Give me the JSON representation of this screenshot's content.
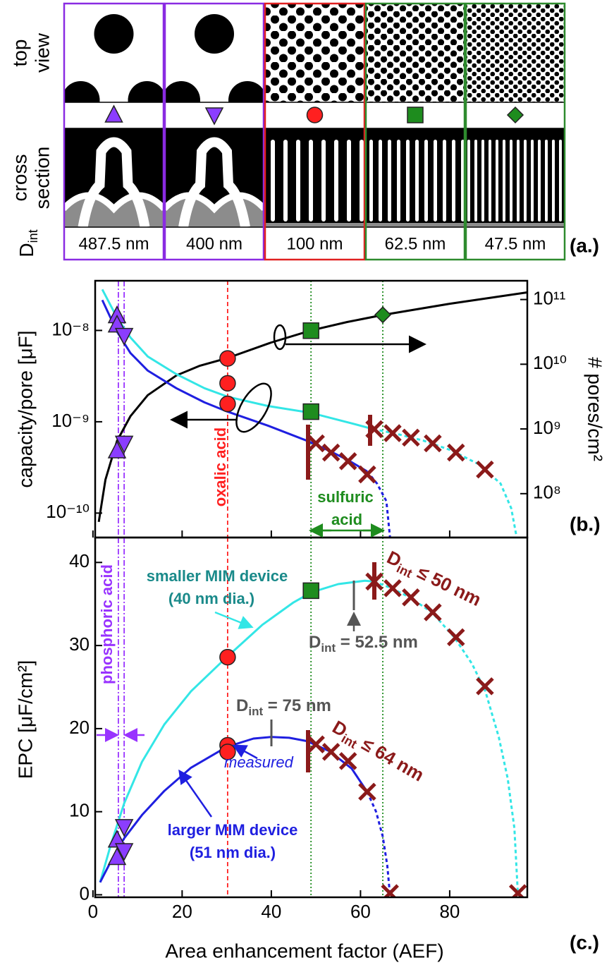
{
  "panel_a": {
    "row_labels": {
      "top": [
        "top",
        "view"
      ],
      "cross": [
        "cross",
        "section"
      ]
    },
    "dint": {
      "main": "D",
      "sub": "int"
    },
    "columns": [
      "487.5 nm",
      "400 nm",
      "100 nm",
      "62.5 nm",
      "47.5 nm"
    ],
    "tag": "(a.)"
  },
  "chart_data": [
    {
      "type": "line",
      "tag": "(b.)",
      "ylabel": "capacity/pore [μF]",
      "y2label": "# pores/cm²",
      "xlim": [
        0.5,
        97.4
      ],
      "ylim": [
        5.4e-11,
        3.5e-08
      ],
      "ylog": true,
      "yticks": [
        {
          "value": 1e-10,
          "label": "10⁻¹⁰"
        },
        {
          "value": 1e-09,
          "label": "10⁻⁹"
        },
        {
          "value": 1e-08,
          "label": "10⁻⁸"
        }
      ],
      "y2lim": [
        21000000.0,
        195000000000.0
      ],
      "y2log": true,
      "y2ticks": [
        {
          "value": 100000000.0,
          "label": "10⁸"
        },
        {
          "value": 1000000000.0,
          "label": "10⁹"
        },
        {
          "value": 10000000000.0,
          "label": "10¹⁰"
        },
        {
          "value": 100000000000.0,
          "label": "10¹¹"
        }
      ],
      "vlines": [
        {
          "x": 5.7,
          "color": "#9933ff",
          "dash": "8 3 2 3"
        },
        {
          "x": 7.0,
          "color": "#9933ff",
          "dash": "8 3 2 3"
        },
        {
          "x": 30.2,
          "color": "#ff2020",
          "dash": "6 4"
        },
        {
          "x": 48.9,
          "color": "#1e8c1e",
          "dash": "2 3"
        },
        {
          "x": 65.0,
          "color": "#1e8c1e",
          "dash": "2 3"
        }
      ],
      "annotations": {
        "oxalic": "oxalic acid",
        "sulfuric": [
          "sulfuric",
          "acid"
        ]
      },
      "series": [
        {
          "color": "#000000",
          "style": "solid",
          "axis": "y2",
          "x": [
            1.3,
            2.8,
            5.4,
            8.4,
            12.3,
            18.7,
            24,
            30.2,
            40,
            48.9,
            57,
            65,
            80,
            97.4
          ],
          "values": [
            36700000.0,
            165000000.0,
            653000000.0,
            1570000000.0,
            3330000000.0,
            6700000000.0,
            9500000000.0,
            12500000000.0,
            21700000000.0,
            33300000000.0,
            44900000000.0,
            57700000000.0,
            86100000000.0,
            129000000000.0
          ]
        },
        {
          "color": "#33e6e6",
          "style": "solid",
          "x": [
            2.1,
            5.4,
            8.4,
            12.3,
            18.7,
            25.0,
            30.2,
            39.2,
            48.9,
            58.2,
            62.9
          ],
          "values": [
            2.81e-08,
            1.38e-08,
            8.37e-09,
            5.18e-09,
            3.32e-09,
            2.33e-09,
            1.88e-09,
            1.49e-09,
            1.25e-09,
            9.57e-10,
            8.3e-10
          ]
        },
        {
          "color": "#33e6e6",
          "style": "dashed",
          "x": [
            62.9,
            67.7,
            74.0,
            80.3,
            86.6,
            91.4,
            93.8,
            95.0
          ],
          "values": [
            8.3e-10,
            7.46e-10,
            6.24e-10,
            4.87e-10,
            3.41e-10,
            2.11e-10,
            1.13e-10,
            5.5e-11
          ]
        },
        {
          "color": "#1f1fe0",
          "style": "solid",
          "x": [
            2.1,
            5.4,
            8.4,
            12.3,
            18.7,
            25.0,
            30.2,
            39.2,
            48.2,
            53.4,
            57.2,
            61.5
          ],
          "values": [
            2.15e-08,
            9.7e-09,
            5.66e-09,
            3.63e-09,
            2.33e-09,
            1.63e-09,
            1.29e-09,
            9.08e-10,
            6.14e-10,
            4.7e-10,
            3.8e-10,
            2.86e-10
          ]
        },
        {
          "color": "#1f1fe0",
          "style": "dashed",
          "x": [
            61.5,
            63.7,
            65.8,
            66.6
          ],
          "values": [
            2.86e-10,
            2.11e-10,
            1.35e-10,
            5.5e-11
          ]
        },
        {
          "color": "#8b1a1a",
          "style": "marker",
          "marker": "cross",
          "x": [
            63.1,
            67.2,
            71.3,
            76.2,
            81.4,
            87.9
          ],
          "values": [
            8.3e-10,
            7.5e-10,
            6.7e-10,
            5.8e-10,
            4.6e-10,
            3e-10
          ]
        },
        {
          "color": "#8b1a1a",
          "style": "marker",
          "marker": "cross",
          "x": [
            50.0,
            53.4,
            57.2,
            61.5
          ],
          "values": [
            5.8e-10,
            4.6e-10,
            3.7e-10,
            2.65e-10
          ]
        },
        {
          "color": "#8b3dff",
          "style": "marker",
          "marker": "triangle-up",
          "x": [
            5.4,
            5.4
          ],
          "values": [
            1.45e-08,
            1.15e-08
          ]
        },
        {
          "color": "#8b3dff",
          "style": "marker",
          "marker": "triangle-down",
          "x": [
            7.0
          ],
          "values": [
            8.8e-09
          ]
        },
        {
          "color": "#8b3dff",
          "style": "marker",
          "marker": "triangle-up",
          "axis": "y2",
          "x": [
            5.4
          ],
          "values": [
            460000000.0
          ]
        },
        {
          "color": "#8b3dff",
          "style": "marker",
          "marker": "triangle-down",
          "axis": "y2",
          "x": [
            7.0
          ],
          "values": [
            600000000.0
          ]
        },
        {
          "color": "#ff2020",
          "style": "marker",
          "marker": "circle",
          "axis": "y2",
          "x": [
            30.2
          ],
          "values": [
            12300000000.0
          ]
        },
        {
          "color": "#ff2020",
          "style": "marker",
          "marker": "circle",
          "x": [
            30.2,
            30.2
          ],
          "values": [
            2.64e-09,
            1.57e-09
          ]
        },
        {
          "color": "#1e8c1e",
          "style": "marker",
          "marker": "square",
          "axis": "y2",
          "x": [
            48.9
          ],
          "values": [
            33000000000.0
          ]
        },
        {
          "color": "#1e8c1e",
          "style": "marker",
          "marker": "square",
          "x": [
            48.9
          ],
          "values": [
            1.29e-09
          ]
        },
        {
          "color": "#1e8c1e",
          "style": "marker",
          "marker": "diamond",
          "axis": "y2",
          "x": [
            65.0
          ],
          "values": [
            58000000000.0
          ]
        }
      ]
    },
    {
      "type": "line",
      "tag": "(c.)",
      "xlabel": "Area enhancement factor (AEF)",
      "ylabel": "EPC [μF/cm²]",
      "xlim": [
        0.5,
        97.4
      ],
      "xticks": [
        0,
        20,
        40,
        60,
        80
      ],
      "ylim": [
        -0.3,
        43
      ],
      "yticks": [
        0,
        10,
        20,
        30,
        40
      ],
      "vlines": [
        {
          "x": 5.7,
          "color": "#9933ff",
          "dash": "8 3 2 3"
        },
        {
          "x": 7.0,
          "color": "#9933ff",
          "dash": "8 3 2 3"
        },
        {
          "x": 30.2,
          "color": "#ff2020",
          "dash": "6 4"
        },
        {
          "x": 48.9,
          "color": "#1e8c1e",
          "dash": "2 3"
        },
        {
          "x": 65.0,
          "color": "#1e8c1e",
          "dash": "2 3"
        }
      ],
      "annotations": {
        "phosphoric": "phosphoric acid",
        "smaller": [
          "smaller MIM device",
          "(40 nm dia.)"
        ],
        "larger": [
          "larger MIM device",
          "(51 nm dia.)"
        ],
        "measured": "measured",
        "d525": {
          "main": "D",
          "sub": "int",
          "rest": " = 52.5 nm"
        },
        "d75": {
          "main": "D",
          "sub": "int",
          "rest": " = 75 nm"
        },
        "d50": {
          "main": "D",
          "sub": "int",
          "rest": " ≤ 50 nm"
        },
        "d64": {
          "main": "D",
          "sub": "int",
          "rest": " ≤ 64 nm"
        }
      },
      "series": [
        {
          "color": "#33e6e6",
          "style": "solid",
          "x": [
            1.6,
            4,
            7,
            11,
            16,
            22,
            30,
            38,
            45,
            49,
            55,
            61,
            63
          ],
          "values": [
            1.5,
            6,
            11,
            16,
            20.5,
            24.5,
            28.6,
            32.5,
            35.2,
            36.4,
            37.4,
            37.8,
            37.7
          ]
        },
        {
          "color": "#33e6e6",
          "style": "dashed",
          "x": [
            63,
            67,
            71,
            76,
            81,
            85,
            88,
            91,
            93,
            94.5,
            95.3
          ],
          "values": [
            37.7,
            36.9,
            35.8,
            34,
            31,
            27.8,
            24.5,
            19,
            14,
            8,
            0
          ]
        },
        {
          "color": "#1f1fe0",
          "style": "solid",
          "x": [
            1.6,
            4,
            7,
            11,
            16,
            22,
            30,
            36,
            40,
            44,
            48,
            53,
            58,
            61.5
          ],
          "values": [
            1.5,
            4,
            6.8,
            9.6,
            12.5,
            15.3,
            17.8,
            18.8,
            19,
            18.9,
            18.5,
            17.3,
            15.2,
            12.4
          ]
        },
        {
          "color": "#1f1fe0",
          "style": "dashed",
          "x": [
            61.5,
            63.5,
            65,
            66,
            66.6
          ],
          "values": [
            12.4,
            10,
            7,
            3.5,
            0
          ]
        },
        {
          "color": "#8b1a1a",
          "style": "marker",
          "marker": "cross",
          "x": [
            63.1,
            67.2,
            71.3,
            76.2,
            81.4,
            87.9,
            95.3
          ],
          "values": [
            37.7,
            36.9,
            35.8,
            34.0,
            31.0,
            25.1,
            0.2
          ]
        },
        {
          "color": "#8b1a1a",
          "style": "marker",
          "marker": "cross",
          "x": [
            50.0,
            53.4,
            57.2,
            61.5,
            66.6
          ],
          "values": [
            18.1,
            17.2,
            16.1,
            12.4,
            0.2
          ]
        },
        {
          "color": "#8b3dff",
          "style": "marker",
          "marker": "triangle-up",
          "x": [
            5.4,
            5.4
          ],
          "values": [
            6.6,
            4.5
          ]
        },
        {
          "color": "#8b3dff",
          "style": "marker",
          "marker": "triangle-down",
          "x": [
            7.0,
            7.0
          ],
          "values": [
            8.2,
            5.3
          ]
        },
        {
          "color": "#ff2020",
          "style": "marker",
          "marker": "circle",
          "x": [
            30.2,
            30.2,
            30.2
          ],
          "values": [
            28.6,
            18.0,
            17.2
          ]
        },
        {
          "color": "#1e8c1e",
          "style": "marker",
          "marker": "square",
          "x": [
            48.9
          ],
          "values": [
            36.6
          ]
        }
      ]
    }
  ]
}
